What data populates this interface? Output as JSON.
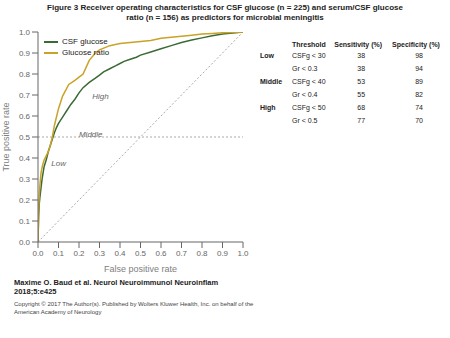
{
  "chart_data": {
    "type": "line",
    "title": "Figure 3 Receiver operating characteristics for CSF glucose (n = 225) and serum/CSF glucose\nratio (n = 156) as predictors for microbial meningitis",
    "x_label": "False positive rate",
    "y_label": "True positive rate",
    "xlim": [
      0,
      1
    ],
    "ylim": [
      0,
      1
    ],
    "xticks": [
      {
        "value": 0,
        "label": "0.0"
      },
      0.1,
      0.2,
      0.3,
      0.4,
      0.5,
      0.6,
      0.7,
      0.8,
      0.9,
      {
        "value": 1,
        "label": "1.0"
      }
    ],
    "yticks": [
      {
        "value": 0,
        "label": "0.0"
      },
      0.1,
      0.2,
      0.3,
      0.4,
      0.5,
      0.6,
      0.7,
      0.8,
      0.9,
      {
        "value": 1,
        "label": "1.0"
      }
    ],
    "grid": false,
    "legend": "upper left",
    "series": [
      {
        "name": "CSF glucose",
        "color": "#3a6b35",
        "x": [
          0.0,
          0.003,
          0.006,
          0.01,
          0.015,
          0.02,
          0.025,
          0.03,
          0.04,
          0.05,
          0.06,
          0.07,
          0.08,
          0.09,
          0.1,
          0.12,
          0.14,
          0.16,
          0.18,
          0.2,
          0.22,
          0.25,
          0.28,
          0.3,
          0.32,
          0.35,
          0.38,
          0.4,
          0.42,
          0.45,
          0.48,
          0.5,
          0.55,
          0.6,
          0.65,
          0.7,
          0.75,
          0.8,
          0.85,
          0.9,
          0.95,
          1.0
        ],
        "values": [
          0.0,
          0.12,
          0.18,
          0.22,
          0.26,
          0.3,
          0.33,
          0.36,
          0.39,
          0.43,
          0.46,
          0.49,
          0.52,
          0.545,
          0.565,
          0.595,
          0.625,
          0.655,
          0.68,
          0.71,
          0.735,
          0.76,
          0.78,
          0.795,
          0.81,
          0.825,
          0.84,
          0.85,
          0.86,
          0.87,
          0.88,
          0.89,
          0.905,
          0.92,
          0.935,
          0.95,
          0.962,
          0.972,
          0.982,
          0.99,
          0.995,
          1.0
        ]
      },
      {
        "name": "Glucose ratio",
        "color": "#c9a227",
        "x": [
          0.0,
          0.003,
          0.006,
          0.01,
          0.015,
          0.02,
          0.025,
          0.03,
          0.04,
          0.05,
          0.06,
          0.07,
          0.08,
          0.1,
          0.12,
          0.15,
          0.18,
          0.2,
          0.22,
          0.25,
          0.28,
          0.3,
          0.35,
          0.4,
          0.45,
          0.5,
          0.55,
          0.6,
          0.65,
          0.7,
          0.75,
          0.8,
          0.85,
          0.9,
          0.95,
          1.0
        ],
        "values": [
          0.0,
          0.15,
          0.22,
          0.28,
          0.33,
          0.355,
          0.375,
          0.39,
          0.41,
          0.43,
          0.46,
          0.5,
          0.555,
          0.635,
          0.695,
          0.75,
          0.77,
          0.785,
          0.8,
          0.865,
          0.9,
          0.915,
          0.935,
          0.945,
          0.95,
          0.955,
          0.96,
          0.97,
          0.975,
          0.98,
          0.985,
          0.99,
          0.993,
          0.996,
          0.998,
          1.0
        ]
      }
    ],
    "reference_lines": [
      {
        "x": [
          0,
          1
        ],
        "y": [
          0,
          1
        ],
        "color": "#aaaaaa",
        "line_style": "dotted"
      },
      {
        "y": 0.5,
        "color": "#aaaaaa",
        "line_style": "dotted"
      }
    ],
    "annotations": [
      {
        "text": "Low",
        "x": 0.055,
        "y": 0.375
      },
      {
        "text": "Middle",
        "x": 0.19,
        "y": 0.515
      },
      {
        "text": "High",
        "x": 0.255,
        "y": 0.695
      }
    ],
    "table": {
      "header": [
        "Threshold",
        "Sensitivity (%)",
        "Specificity (%)"
      ],
      "rows": [
        {
          "level": "Low",
          "thresh": "CSFg < 30",
          "sens": 38,
          "spec": 98
        },
        {
          "level": null,
          "thresh": "Gr < 0.3",
          "sens": 38,
          "spec": 94
        },
        {
          "level": "Middle",
          "thresh": "CSFg < 40",
          "sens": 53,
          "spec": 89
        },
        {
          "level": null,
          "thresh": "Gr < 0.4",
          "sens": 55,
          "spec": 82
        },
        {
          "level": "High",
          "thresh": "CSFg < 50",
          "sens": 68,
          "spec": 74
        },
        {
          "level": null,
          "thresh": "Gr < 0.5",
          "sens": 77,
          "spec": 70
        }
      ]
    },
    "footer": [
      "Maxime O. Baud et al. Neurol Neuroimmunol Neuroinflam\n2018;5:e425",
      "Copyright © 2017 The Author(s). Published by Wolters Kluwer Health, Inc. on behalf of the\nAmerican Academy of Neurology"
    ]
  }
}
